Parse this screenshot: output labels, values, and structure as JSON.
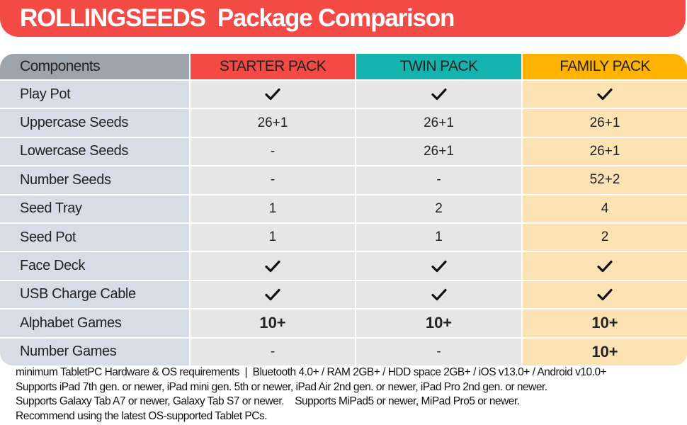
{
  "title": "ROLLINGSEEDS  Package Comparison",
  "colors": {
    "title_bg": "#f44a46",
    "starter": "#f44a46",
    "twin": "#14b3ae",
    "family": "#ffb300",
    "components_header": "#9ea4ac"
  },
  "table": {
    "headers": {
      "components": "Components",
      "starter": "STARTER PACK",
      "twin": "TWIN PACK",
      "family": "FAMILY PACK"
    },
    "rows": [
      {
        "label": "Play Pot",
        "starter": "check",
        "twin": "check",
        "family": "check"
      },
      {
        "label": "Uppercase Seeds",
        "starter": "26+1",
        "twin": "26+1",
        "family": "26+1"
      },
      {
        "label": "Lowercase Seeds",
        "starter": "-",
        "twin": "26+1",
        "family": "26+1"
      },
      {
        "label": "Number Seeds",
        "starter": "-",
        "twin": "-",
        "family": "52+2"
      },
      {
        "label": "Seed Tray",
        "starter": "1",
        "twin": "2",
        "family": "4"
      },
      {
        "label": "Seed Pot",
        "starter": "1",
        "twin": "1",
        "family": "2"
      },
      {
        "label": "Face Deck",
        "starter": "check",
        "twin": "check",
        "family": "check"
      },
      {
        "label": "USB Charge Cable",
        "starter": "check",
        "twin": "check",
        "family": "check"
      },
      {
        "label": "Alphabet Games",
        "starter": "10+",
        "twin": "10+",
        "family": "10+"
      },
      {
        "label": "Number Games",
        "starter": "-",
        "twin": "-",
        "family": "10+"
      }
    ]
  },
  "footer": {
    "line1": "minimum TabletPC Hardware & OS requirements  |  Bluetooth 4.0+ / RAM 2GB+ / HDD space 2GB+ / iOS v13.0+ / Android v10.0+",
    "line2": "Supports iPad 7th gen. or newer, iPad mini gen. 5th or newer, iPad Air 2nd gen. or newer, iPad Pro 2nd gen. or newer.",
    "line3": "Supports Galaxy Tab A7 or newer, Galaxy Tab S7 or newer.    Supports MiPad5 or newer, MiPad Pro5 or newer.",
    "line4": "Recommend using the latest OS-supported Tablet PCs."
  }
}
